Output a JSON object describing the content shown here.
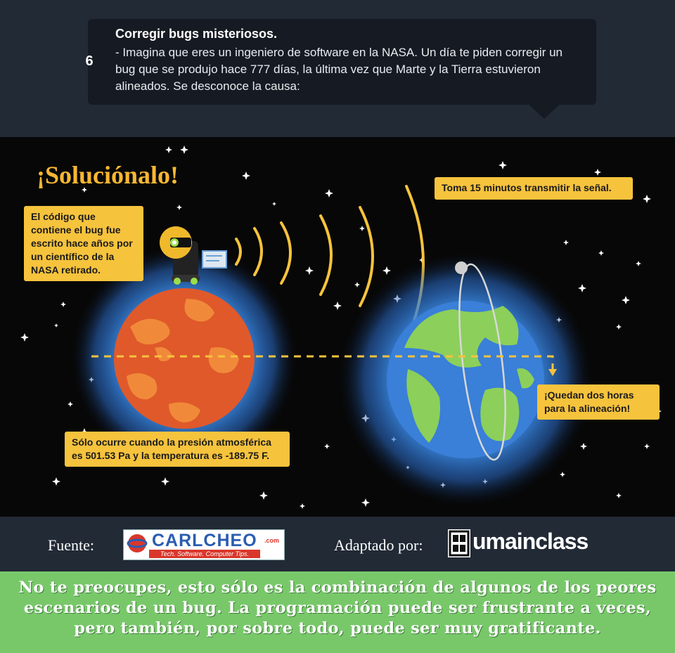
{
  "step": {
    "number": "6",
    "title": "Corregir bugs misteriosos.",
    "body": "- Imagina que eres un ingeniero de software en la NASA. Un día te piden corregir un bug que se produjo hace 777 días, la última vez que Marte y la Tierra estuvieron alineados. Se desconoce la causa:"
  },
  "scene": {
    "headline": "¡Soluciónalo!",
    "notes": {
      "code": "El código que contiene el bug fue escrito hace años por un científico de la NASA retirado.",
      "signal": "Toma 15 minutos transmitir la señal.",
      "alignment": "¡Quedan dos horas para la alineación!",
      "condition": "Sólo ocurre cuando la presión atmosférica es 501.53 Pa y la temperatura es -189.75 F."
    },
    "colors": {
      "mars": "#e0592a",
      "earth_ocean": "#3a7fd8",
      "earth_land": "#8ccf5a",
      "glow": "#3c8ee8",
      "signal": "#f6c33d"
    }
  },
  "footer": {
    "source_label": "Fuente:",
    "source_logo": {
      "name": "CARLCHEO",
      "suffix": ".com",
      "tagline": "Tech. Software. Computer Tips."
    },
    "adapted_label": "Adaptado por:",
    "adapted_logo": {
      "name": "umainclass"
    }
  },
  "banner": {
    "text": "No te preocupes, esto sólo es la combinación de algunos de los peores escenarios de un bug. La programación puede ser frustrante a veces, pero también, por sobre todo, puede ser muy gratificante."
  }
}
